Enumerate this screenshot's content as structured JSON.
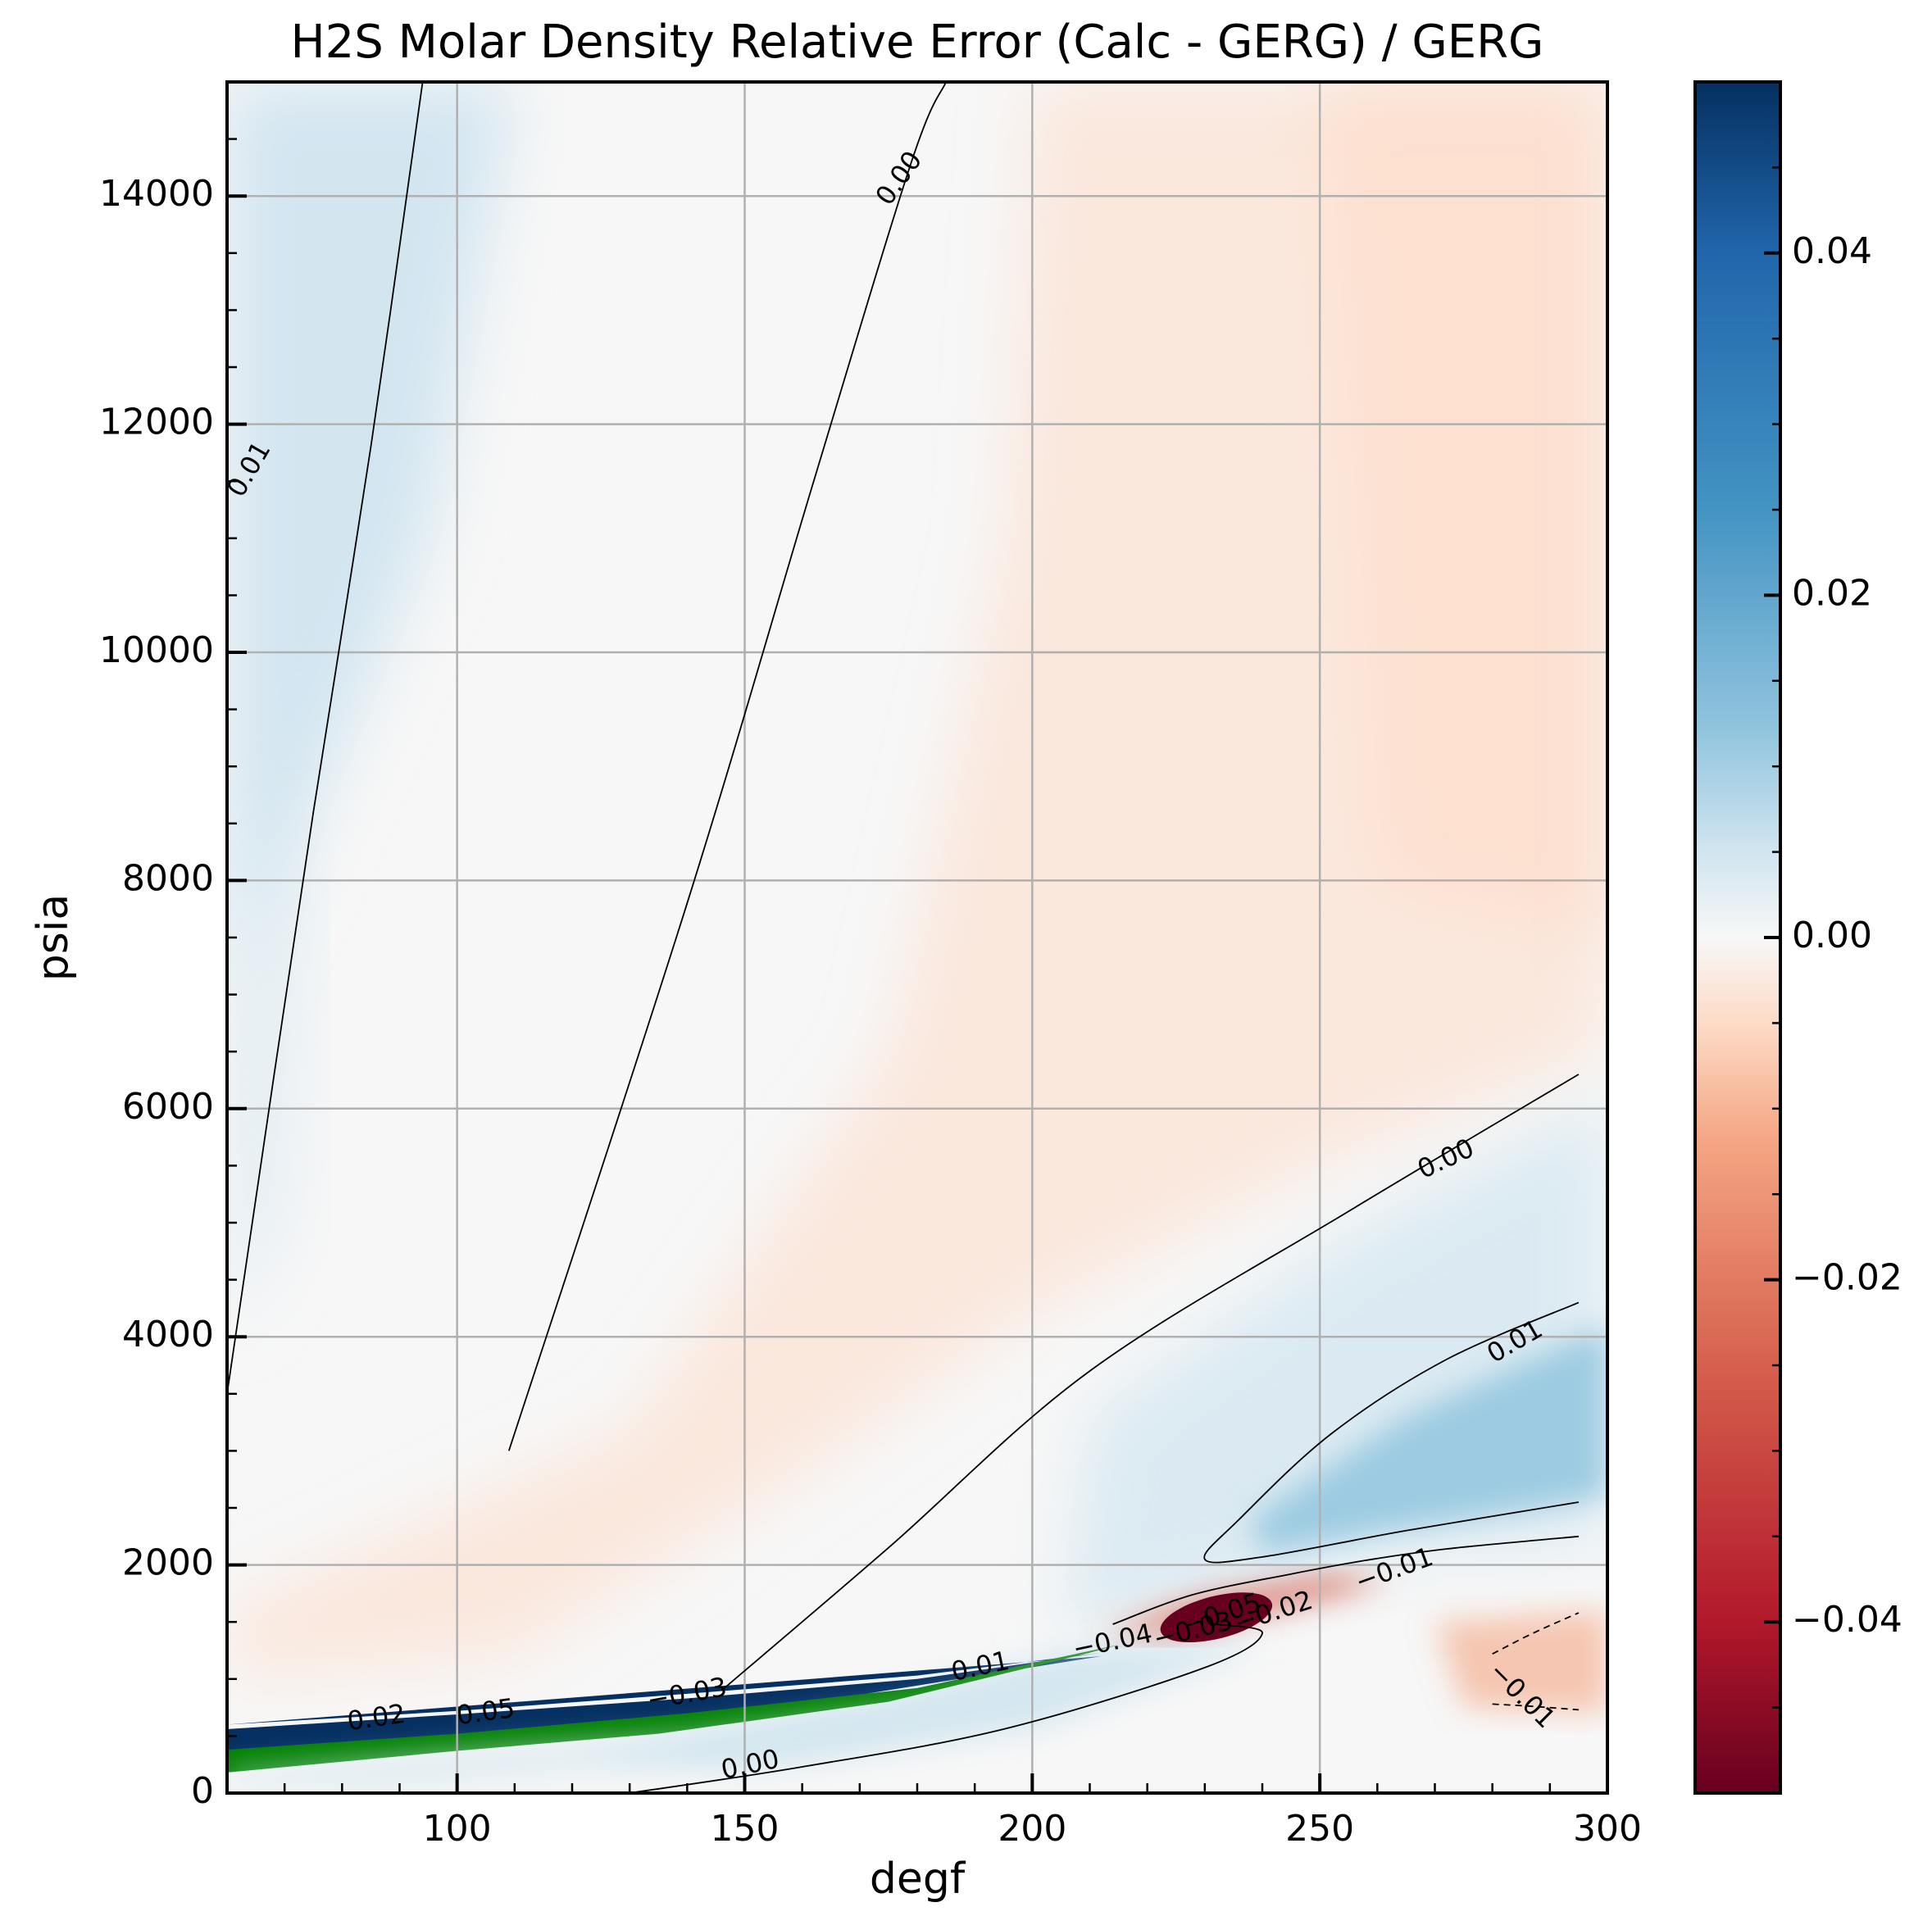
{
  "chart_data": {
    "type": "heatmap",
    "title": "H2S Molar Density Relative Error (Calc - GERG) / GERG",
    "xlabel": "degf",
    "ylabel": "psia",
    "xlim": [
      60,
      300
    ],
    "ylim": [
      0,
      15000
    ],
    "x_ticks": [
      {
        "value": 100,
        "label": "100"
      },
      {
        "value": 150,
        "label": "150"
      },
      {
        "value": 200,
        "label": "200"
      },
      {
        "value": 250,
        "label": "250"
      },
      {
        "value": 300,
        "label": "300"
      }
    ],
    "y_ticks": [
      {
        "value": 0,
        "label": "0"
      },
      {
        "value": 2000,
        "label": "2000"
      },
      {
        "value": 4000,
        "label": "4000"
      },
      {
        "value": 6000,
        "label": "6000"
      },
      {
        "value": 8000,
        "label": "8000"
      },
      {
        "value": 10000,
        "label": "10000"
      },
      {
        "value": 12000,
        "label": "12000"
      },
      {
        "value": 14000,
        "label": "14000"
      }
    ],
    "grid": true,
    "colormap": "RdBu",
    "colorbar": {
      "range": [
        -0.05,
        0.05
      ],
      "ticks": [
        {
          "value": 0.04,
          "label": "0.04"
        },
        {
          "value": 0.02,
          "label": "0.02"
        },
        {
          "value": 0.0,
          "label": "0.00"
        },
        {
          "value": -0.02,
          "label": "−0.02"
        },
        {
          "value": -0.04,
          "label": "−0.04"
        }
      ]
    },
    "colors": {
      "positive_max": "#053061",
      "positive_mid": "#4393c3",
      "positive_light": "#d1e5f0",
      "neutral": "#f7f7f7",
      "negative_light": "#fddbc7",
      "negative_mid": "#d6604d",
      "negative_max": "#67001f",
      "two_phase_band": "#008000"
    },
    "contours": [
      {
        "level": "0.01",
        "style": "solid",
        "points": [
          [
            60,
            3500
          ],
          [
            75,
            8600
          ],
          [
            85,
            11800
          ],
          [
            94,
            15000
          ]
        ]
      },
      {
        "level": "0.00",
        "style": "solid",
        "points": [
          [
            109,
            3000
          ],
          [
            140,
            7800
          ],
          [
            162,
            11500
          ],
          [
            179,
            14300
          ],
          [
            185,
            15000
          ]
        ]
      },
      {
        "level": "0.00",
        "style": "solid",
        "points": [
          [
            146,
            900
          ],
          [
            175,
            2150
          ],
          [
            210,
            3700
          ],
          [
            255,
            5100
          ],
          [
            295,
            6300
          ]
        ]
      },
      {
        "level": "0.01",
        "style": "solid",
        "points": [
          [
            295,
            4300
          ],
          [
            272,
            3800
          ],
          [
            252,
            3150
          ],
          [
            236,
            2400
          ],
          [
            230,
            2050
          ],
          [
            240,
            2070
          ],
          [
            265,
            2300
          ],
          [
            295,
            2550
          ]
        ]
      },
      {
        "level": "0.00",
        "style": "solid",
        "points": [
          [
            130,
            0
          ],
          [
            160,
            230
          ],
          [
            195,
            560
          ],
          [
            230,
            1100
          ],
          [
            240,
            1400
          ],
          [
            232,
            1480
          ]
        ]
      },
      {
        "level": "-0.01",
        "style": "solid",
        "points": [
          [
            295,
            2250
          ],
          [
            272,
            2140
          ],
          [
            258,
            2040
          ],
          [
            245,
            1920
          ],
          [
            228,
            1740
          ],
          [
            214,
            1480
          ]
        ]
      },
      {
        "level": "-0.01",
        "style": "dashed",
        "points": [
          [
            280,
            1220
          ],
          [
            287,
            1400
          ],
          [
            295,
            1580
          ]
        ]
      },
      {
        "level": "-0.01",
        "style": "dashed",
        "points": [
          [
            280,
            780
          ],
          [
            287,
            760
          ],
          [
            295,
            730
          ]
        ]
      }
    ],
    "contour_labels": [
      {
        "text": "0.01",
        "x": 64,
        "y": 11600,
        "angle": -60
      },
      {
        "text": "0.00",
        "x": 177,
        "y": 14150,
        "angle": -55
      },
      {
        "text": "0.00",
        "x": 272,
        "y": 5550,
        "angle": -25
      },
      {
        "text": "0.01",
        "x": 284,
        "y": 3950,
        "angle": -30
      },
      {
        "text": "−0.01",
        "x": 263,
        "y": 1950,
        "angle": -20
      },
      {
        "text": "−0.01",
        "x": 285,
        "y": 850,
        "angle": 45
      },
      {
        "text": "0.00",
        "x": 151,
        "y": 240,
        "angle": -12
      },
      {
        "text": "0.02",
        "x": 86,
        "y": 650,
        "angle": -8
      },
      {
        "text": "0.05",
        "x": 105,
        "y": 700,
        "angle": -8
      },
      {
        "text": "−0.03",
        "x": 140,
        "y": 860,
        "angle": -10
      },
      {
        "text": "0.01",
        "x": 191,
        "y": 1100,
        "angle": -12
      },
      {
        "text": "−0.04",
        "x": 214,
        "y": 1320,
        "angle": -12
      },
      {
        "text": "−0.03",
        "x": 228,
        "y": 1420,
        "angle": -14
      },
      {
        "text": "−0.05",
        "x": 233,
        "y": 1560,
        "angle": -18
      },
      {
        "text": "−0.02",
        "x": 242,
        "y": 1580,
        "angle": -18
      }
    ]
  }
}
